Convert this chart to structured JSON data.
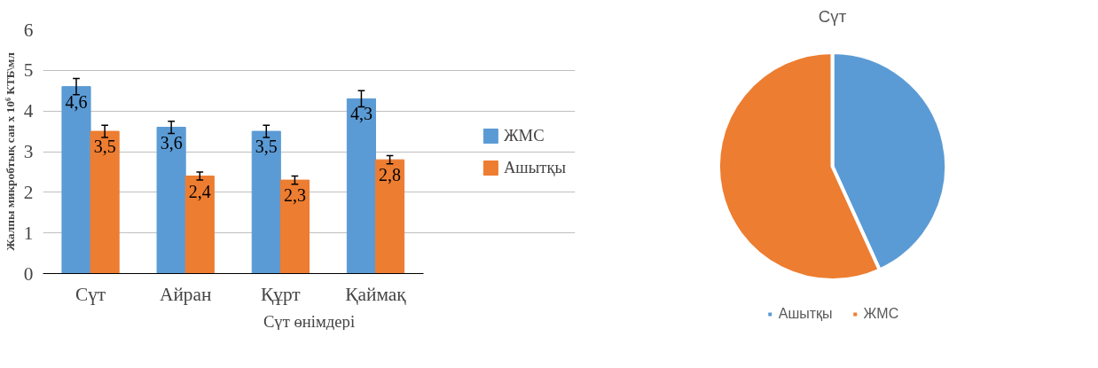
{
  "chart_data": [
    {
      "type": "bar",
      "xlabel": "Сүт өнімдері",
      "ylabel": "Жалпы микробтық сан х 10⁶ КТБ\\мл",
      "categories": [
        "Сүт",
        "Айран",
        "Құрт",
        "Қаймақ"
      ],
      "series": [
        {
          "name": "ЖМС",
          "color": "#5b9bd5",
          "values": [
            4.6,
            3.6,
            3.5,
            4.3
          ],
          "value_labels": [
            "4,6",
            "3,6",
            "3,5",
            "4,3"
          ],
          "errors": [
            0.2,
            0.15,
            0.15,
            0.2
          ]
        },
        {
          "name": "Ашытқы",
          "color": "#ed7d31",
          "values": [
            3.5,
            2.4,
            2.3,
            2.8
          ],
          "value_labels": [
            "3,5",
            "2,4",
            "2,3",
            "2,8"
          ],
          "errors": [
            0.15,
            0.1,
            0.1,
            0.1
          ]
        }
      ],
      "ylim": [
        0,
        6
      ],
      "yticks": [
        0,
        1,
        2,
        3,
        4,
        5,
        6
      ],
      "grid": "y",
      "legend": "right",
      "data_labels": true
    },
    {
      "type": "pie",
      "title": "Сүт",
      "categories": [
        "Ашытқы",
        "ЖМС"
      ],
      "values": [
        43.2,
        56.8
      ],
      "colors": [
        "#5b9bd5",
        "#ed7d31"
      ],
      "legend": "bottom"
    }
  ]
}
